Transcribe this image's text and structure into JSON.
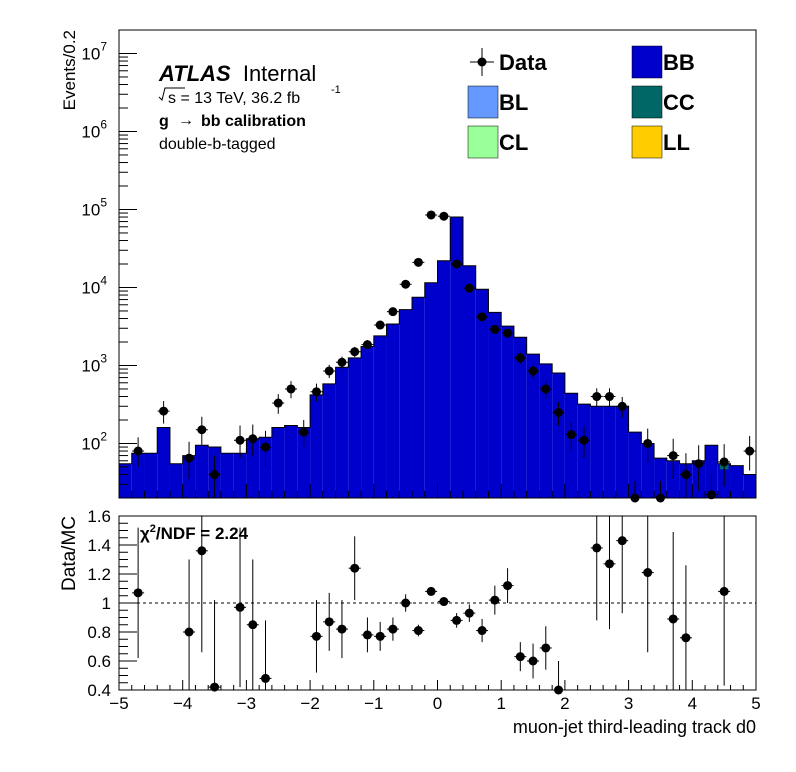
{
  "chart_data": [
    {
      "type": "histogram",
      "ylabel": "Events/0.2",
      "yscale": "log",
      "ylim": [
        20,
        20000000
      ],
      "xlim": [
        -5,
        5
      ],
      "y_ticks": [
        {
          "value": 100,
          "base": "10",
          "exp": "2"
        },
        {
          "value": 1000,
          "base": "10",
          "exp": "3"
        },
        {
          "value": 10000,
          "base": "10",
          "exp": "4"
        },
        {
          "value": 100000,
          "base": "10",
          "exp": "5"
        },
        {
          "value": 1000000,
          "base": "10",
          "exp": "6"
        },
        {
          "value": 10000000,
          "base": "10",
          "exp": "7"
        }
      ],
      "annotations": {
        "atlas": "ATLAS",
        "internal": "Internal",
        "sqrt_s": "s = 13 TeV, 36.2 fb",
        "lumi_exp": "-1",
        "calib_g": "g",
        "calib_rest": "bb calibration",
        "tag": "double-b-tagged"
      },
      "legend": {
        "position": "top-right",
        "entries": [
          {
            "label": "Data",
            "kind": "marker",
            "color": "#000000"
          },
          {
            "label": "BB",
            "kind": "fill",
            "color": "#0000cc"
          },
          {
            "label": "BL",
            "kind": "fill",
            "color": "#6699ff"
          },
          {
            "label": "CC",
            "kind": "fill",
            "color": "#006666"
          },
          {
            "label": "CL",
            "kind": "fill",
            "color": "#99ff99"
          },
          {
            "label": "LL",
            "kind": "fill",
            "color": "#ffcc00"
          }
        ]
      },
      "bin_edges": [
        -5.0,
        -4.8,
        -4.6,
        -4.4,
        -4.2,
        -4.0,
        -3.8,
        -3.6,
        -3.4,
        -3.2,
        -3.0,
        -2.8,
        -2.6,
        -2.4,
        -2.2,
        -2.0,
        -1.8,
        -1.6,
        -1.4,
        -1.2,
        -1.0,
        -0.8,
        -0.6,
        -0.4,
        -0.2,
        0.0,
        0.2,
        0.4,
        0.6,
        0.8,
        1.0,
        1.2,
        1.4,
        1.6,
        1.8,
        2.0,
        2.2,
        2.4,
        2.6,
        2.8,
        3.0,
        3.2,
        3.4,
        3.6,
        3.8,
        4.0,
        4.2,
        4.4,
        4.6,
        4.8,
        5.0
      ],
      "mc_bb": [
        55,
        75,
        75,
        160,
        55,
        70,
        95,
        90,
        75,
        75,
        115,
        120,
        160,
        170,
        160,
        420,
        580,
        950,
        1250,
        1750,
        2400,
        3400,
        5200,
        7500,
        11500,
        22000,
        80000,
        19000,
        9500,
        4800,
        3200,
        2300,
        1400,
        1050,
        800,
        440,
        320,
        300,
        300,
        300,
        140,
        100,
        65,
        60,
        55,
        60,
        95,
        55,
        52,
        40
      ],
      "mc_cc": [
        0,
        0,
        0,
        0,
        0,
        0,
        0,
        0,
        0,
        0,
        0,
        0,
        0,
        0,
        0,
        0,
        0,
        0,
        0,
        0,
        0,
        0,
        0,
        0,
        0,
        0,
        0,
        0,
        0,
        0,
        0,
        0,
        0,
        0,
        0,
        0,
        0,
        0,
        0,
        0,
        0,
        0,
        0,
        0,
        0,
        0,
        0,
        4,
        0,
        0
      ],
      "data_x": [
        -4.9,
        -4.7,
        -4.5,
        -4.3,
        -4.1,
        -3.9,
        -3.7,
        -3.5,
        -3.3,
        -3.1,
        -2.9,
        -2.7,
        -2.5,
        -2.3,
        -2.1,
        -1.9,
        -1.7,
        -1.5,
        -1.3,
        -1.1,
        -0.9,
        -0.7,
        -0.5,
        -0.3,
        -0.1,
        0.1,
        0.3,
        0.5,
        0.7,
        0.9,
        1.1,
        1.3,
        1.5,
        1.7,
        1.9,
        2.1,
        2.3,
        2.5,
        2.7,
        2.9,
        3.1,
        3.3,
        3.5,
        3.7,
        3.9,
        4.1,
        4.3,
        4.5,
        4.7,
        4.9
      ],
      "data_y": [
        null,
        80,
        null,
        260,
        null,
        65,
        150,
        40,
        null,
        110,
        115,
        90,
        330,
        500,
        140,
        460,
        850,
        1100,
        1500,
        1850,
        3300,
        4900,
        11000,
        21000,
        85000,
        82000,
        20000,
        9800,
        4200,
        2900,
        2600,
        1250,
        850,
        500,
        250,
        130,
        110,
        400,
        400,
        300,
        18,
        100,
        18,
        70,
        40,
        55,
        22,
        58,
        null,
        80
      ],
      "data_err_up": [
        null,
        40,
        null,
        90,
        null,
        40,
        70,
        30,
        null,
        60,
        60,
        55,
        100,
        130,
        60,
        125,
        170,
        200,
        230,
        260,
        330,
        400,
        600,
        850,
        1800,
        1800,
        850,
        580,
        400,
        320,
        300,
        210,
        170,
        130,
        90,
        60,
        55,
        110,
        110,
        95,
        15,
        55,
        15,
        45,
        35,
        40,
        20,
        40,
        null,
        45
      ],
      "data_err_dn": [
        null,
        30,
        null,
        80,
        null,
        30,
        55,
        22,
        null,
        45,
        45,
        40,
        90,
        120,
        50,
        115,
        160,
        190,
        220,
        250,
        320,
        390,
        590,
        840,
        1790,
        1790,
        840,
        570,
        390,
        310,
        290,
        200,
        160,
        120,
        80,
        50,
        45,
        100,
        100,
        85,
        12,
        45,
        12,
        35,
        28,
        30,
        15,
        30,
        null,
        35
      ]
    },
    {
      "type": "scatter",
      "xlabel": "muon-jet third-leading track d0",
      "ylabel": "Data/MC",
      "xlim": [
        -5,
        5
      ],
      "ylim": [
        0.4,
        1.6
      ],
      "x_ticks": [
        "−5",
        "−4",
        "−3",
        "−2",
        "−1",
        "0",
        "1",
        "2",
        "3",
        "4",
        "5"
      ],
      "y_ticks": [
        "0.4",
        "0.6",
        "0.8",
        "1",
        "1.2",
        "1.4",
        "1.6"
      ],
      "reference_line": 1,
      "chi2_label": "χ",
      "chi2_exp": "2",
      "chi2_rest": "/NDF = 2.24",
      "x": [
        -4.7,
        -3.9,
        -3.7,
        -3.5,
        -3.1,
        -2.9,
        -2.7,
        -1.9,
        -1.7,
        -1.5,
        -1.3,
        -1.1,
        -0.9,
        -0.7,
        -0.5,
        -0.3,
        -0.1,
        0.1,
        0.3,
        0.5,
        0.7,
        0.9,
        1.1,
        1.3,
        1.5,
        1.7,
        1.9,
        2.5,
        2.7,
        2.9,
        3.3,
        3.7,
        3.9,
        4.5
      ],
      "y": [
        1.07,
        0.8,
        1.36,
        0.42,
        0.97,
        0.85,
        0.48,
        0.77,
        0.87,
        0.82,
        1.24,
        0.78,
        0.77,
        0.82,
        1.0,
        0.81,
        1.08,
        1.01,
        0.88,
        0.93,
        0.81,
        1.02,
        1.12,
        0.63,
        0.6,
        0.69,
        0.4,
        1.38,
        1.27,
        1.43,
        1.21,
        0.89,
        0.76,
        1.08
      ],
      "err": [
        0.45,
        0.5,
        0.7,
        0.6,
        0.55,
        0.45,
        0.4,
        0.25,
        0.2,
        0.2,
        0.22,
        0.12,
        0.1,
        0.08,
        0.06,
        0.04,
        0.03,
        0.03,
        0.05,
        0.06,
        0.08,
        0.1,
        0.12,
        0.1,
        0.12,
        0.15,
        0.2,
        0.5,
        0.45,
        0.5,
        0.55,
        0.6,
        0.5,
        0.65
      ]
    }
  ]
}
